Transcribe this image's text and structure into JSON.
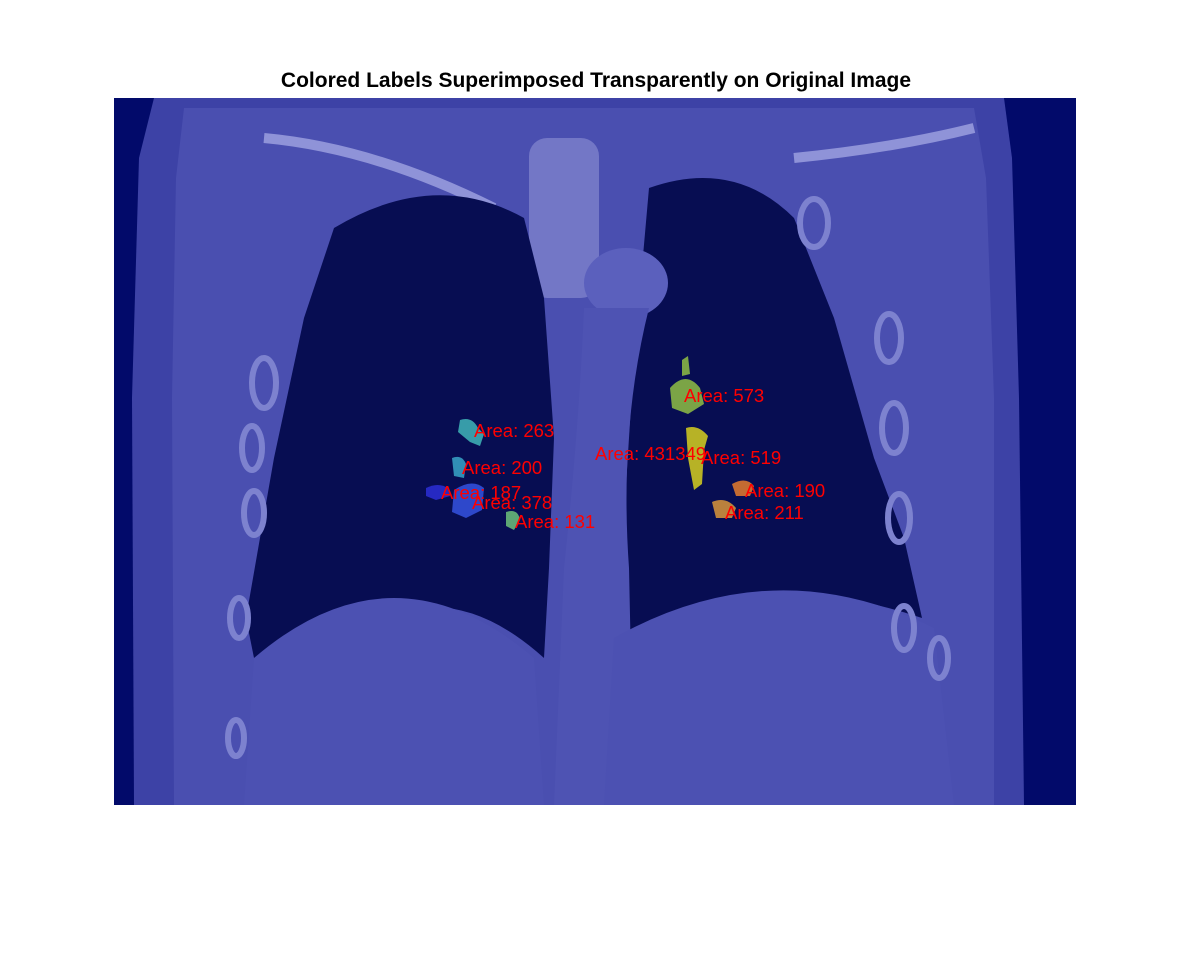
{
  "figure": {
    "title": "Colored Labels Superimposed Transparently on Original Image"
  },
  "colors": {
    "background": "#ffffff",
    "overlay_base": "#000080",
    "tissue_tint": "#4a4fb0",
    "label_text": "#ff0000"
  },
  "labels": [
    {
      "text": "Area: 263",
      "blob_color": "#3fb6b8"
    },
    {
      "text": "Area: 200",
      "blob_color": "#38a6c8"
    },
    {
      "text": "Area: 187",
      "blob_color": "#2b2fd6"
    },
    {
      "text": "Area: 378",
      "blob_color": "#3553e0"
    },
    {
      "text": "Area: 131",
      "blob_color": "#6cc27a"
    },
    {
      "text": "Area: 573",
      "blob_color": "#8fbf44"
    },
    {
      "text": "Area: 431349",
      "blob_color": ""
    },
    {
      "text": "Area: 519",
      "blob_color": "#d6d01e"
    },
    {
      "text": "Area: 190",
      "blob_color": "#e57d2d"
    },
    {
      "text": "Area: 211",
      "blob_color": "#d9973a"
    }
  ]
}
